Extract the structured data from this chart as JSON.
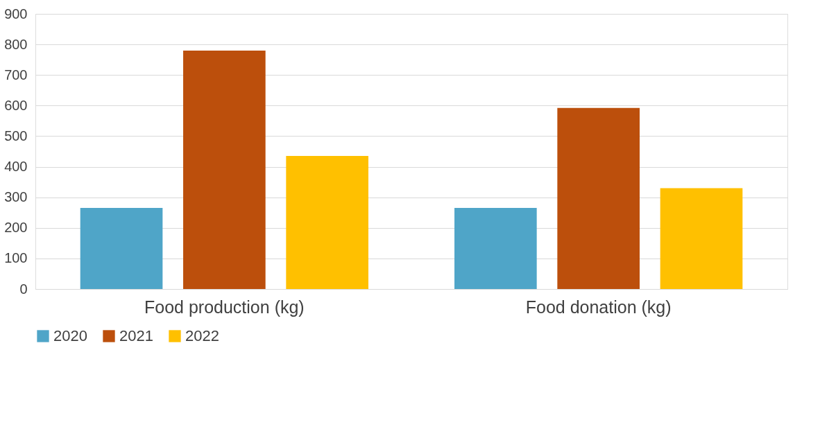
{
  "chart_data": {
    "type": "bar",
    "categories": [
      "Food production (kg)",
      "Food donation (kg)"
    ],
    "series": [
      {
        "name": "2020",
        "color": "#4fa5c8",
        "values": [
          265,
          265
        ]
      },
      {
        "name": "2021",
        "color": "#bc4f0c",
        "values": [
          780,
          592
        ]
      },
      {
        "name": "2022",
        "color": "#ffc000",
        "values": [
          435,
          330
        ]
      }
    ],
    "ylim": [
      0,
      900
    ],
    "yticks": [
      0,
      100,
      200,
      300,
      400,
      500,
      600,
      700,
      800,
      900
    ],
    "grid": "y",
    "legend": "bottom"
  }
}
